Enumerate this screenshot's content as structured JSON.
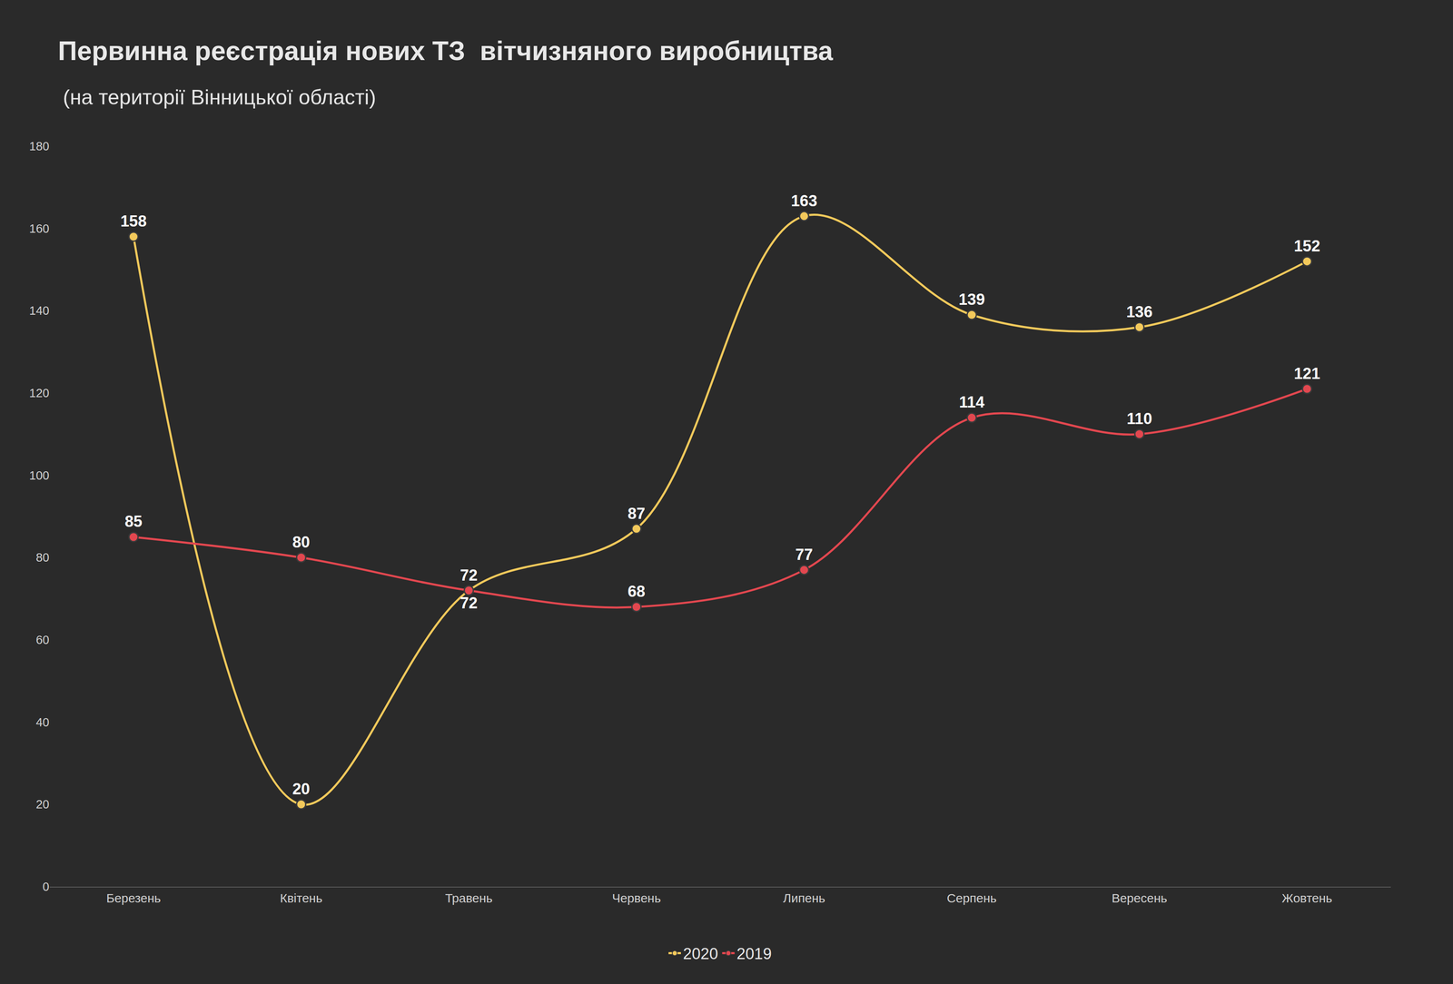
{
  "chart_data": {
    "type": "line",
    "title": "Первинна реєстрація нових ТЗ  вітчизняного виробництва",
    "subtitle": "(на території Вінницької області)",
    "categories": [
      "Березень",
      "Квітень",
      "Травень",
      "Червень",
      "Липень",
      "Серпень",
      "Вересень",
      "Жовтень"
    ],
    "series": [
      {
        "name": "2020",
        "color": "#f3c95b",
        "values": [
          158,
          20,
          72,
          87,
          163,
          139,
          136,
          152
        ]
      },
      {
        "name": "2019",
        "color": "#e2474f",
        "values": [
          85,
          80,
          72,
          68,
          77,
          114,
          110,
          121
        ]
      }
    ],
    "ylim": [
      0,
      180
    ],
    "yticks": [
      0,
      20,
      40,
      60,
      80,
      100,
      120,
      140,
      160,
      180
    ],
    "grid": false,
    "legend": "bottom",
    "data_labels": true,
    "marker": "circle",
    "line_style": "spline"
  }
}
